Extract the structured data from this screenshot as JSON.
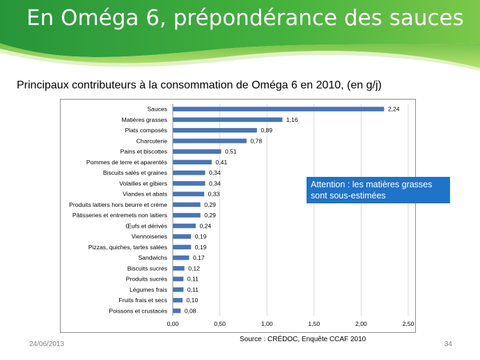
{
  "slide": {
    "title": "En Oméga 6, prépondérance des sauces",
    "subtitle": "Principaux contributeurs à la consommation de Oméga 6 en 2010, (en g/j)",
    "callout": "Attention : les matières grasses sont sous-estimées",
    "source": "Source : CRÉDOC, Enquête  CCAF 2010",
    "date": "24/06/2013",
    "page_number": "34"
  },
  "colors": {
    "header_green_dark": "#2e9e3a",
    "header_green_light": "#8fd04a",
    "bar": "#4a74b5",
    "callout_bg": "#1f73c8"
  },
  "chart_data": {
    "type": "bar",
    "orientation": "horizontal",
    "categories": [
      "Sauces",
      "Matières grasses",
      "Plats composés",
      "Charcuterie",
      "Pains et biscottes",
      "Pommes de terre et aparentés",
      "Biscuits salés et graines",
      "Volailles et gibiers",
      "Viandes et abats",
      "Produits laitiers hors beurre et crème",
      "Pâtisseries et entremets non laitiers",
      "Œufs et dérivés",
      "Viennoiseries",
      "Pizzas, quiches, tartes salées",
      "Sandwichs",
      "Biscuits sucrés",
      "Produits sucrés",
      "Légumes frais",
      "Fruits frais et secs",
      "Poissons et crustacés"
    ],
    "values": [
      2.24,
      1.16,
      0.89,
      0.78,
      0.51,
      0.41,
      0.34,
      0.34,
      0.33,
      0.29,
      0.29,
      0.24,
      0.19,
      0.19,
      0.17,
      0.12,
      0.11,
      0.11,
      0.1,
      0.08
    ],
    "value_labels": [
      "2,24",
      "1,16",
      "0,89",
      "0,78",
      "0,51",
      "0,41",
      "0,34",
      "0,34",
      "0,33",
      "0,29",
      "0,29",
      "0,24",
      "0,19",
      "0,19",
      "0,17",
      "0,12",
      "0,11",
      "0,11",
      "0,10",
      "0,08"
    ],
    "xlim": [
      0,
      2.5
    ],
    "xticks": [
      0,
      0.5,
      1.0,
      1.5,
      2.0,
      2.5
    ],
    "xtick_labels": [
      "0,00",
      "0,50",
      "1,00",
      "1,50",
      "2,00",
      "2,50"
    ],
    "grid": true,
    "title": "",
    "xlabel": "",
    "ylabel": ""
  }
}
